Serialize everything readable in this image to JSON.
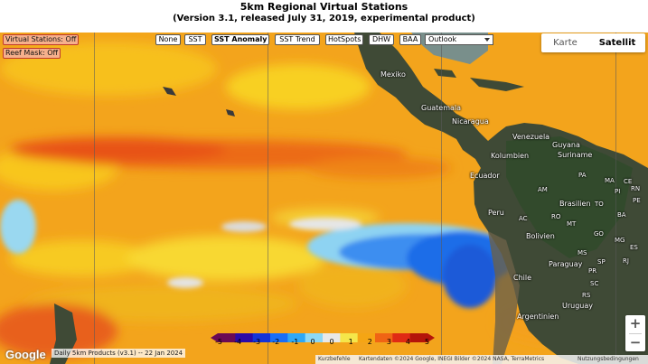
{
  "title": {
    "line1": "5km Regional Virtual Stations",
    "line2": "(Version 3.1, released July 31, 2019, experimental product)"
  },
  "toolbar": {
    "buttons": [
      {
        "label": "None",
        "active": false
      },
      {
        "label": "SST",
        "active": false
      },
      {
        "label": "SST Anomaly",
        "active": true
      },
      {
        "label": "SST Trend",
        "active": false
      },
      {
        "label": "HotSpots",
        "active": false
      },
      {
        "label": "DHW",
        "active": false
      },
      {
        "label": "BAA",
        "active": false
      }
    ],
    "outlook_select": {
      "value": "Outlook",
      "icon": "chevron-down-icon"
    }
  },
  "left_controls": {
    "virtual_stations": "Virtual Stations: Off",
    "reef_mask": "Reef Mask: Off"
  },
  "map_type": {
    "options": [
      {
        "label": "Karte",
        "selected": false
      },
      {
        "label": "Satellit",
        "selected": true
      }
    ]
  },
  "zoom": {
    "plus": "+",
    "minus": "−"
  },
  "place_labels": [
    {
      "text": "Mexiko",
      "small": false
    },
    {
      "text": "Guatemala",
      "small": false
    },
    {
      "text": "Nicaragua",
      "small": false
    },
    {
      "text": "Venezuela",
      "small": false
    },
    {
      "text": "Guyana",
      "small": false
    },
    {
      "text": "Suriname",
      "small": false
    },
    {
      "text": "Kolumbien",
      "small": false
    },
    {
      "text": "Ecuador",
      "small": false
    },
    {
      "text": "Peru",
      "small": false
    },
    {
      "text": "Brasilien",
      "small": false
    },
    {
      "text": "Bolivien",
      "small": false
    },
    {
      "text": "Paraguay",
      "small": false
    },
    {
      "text": "Chile",
      "small": false
    },
    {
      "text": "Uruguay",
      "small": false
    },
    {
      "text": "Argentinien",
      "small": false
    },
    {
      "text": "AM",
      "small": true
    },
    {
      "text": "PA",
      "small": true
    },
    {
      "text": "MA",
      "small": true
    },
    {
      "text": "CE",
      "small": true
    },
    {
      "text": "PI",
      "small": true
    },
    {
      "text": "PE",
      "small": true
    },
    {
      "text": "TO",
      "small": true
    },
    {
      "text": "BA",
      "small": true
    },
    {
      "text": "MT",
      "small": true
    },
    {
      "text": "GO",
      "small": true
    },
    {
      "text": "MG",
      "small": true
    },
    {
      "text": "MS",
      "small": true
    },
    {
      "text": "SP",
      "small": true
    },
    {
      "text": "PR",
      "small": true
    },
    {
      "text": "SC",
      "small": true
    },
    {
      "text": "RS",
      "small": true
    },
    {
      "text": "RO",
      "small": true
    },
    {
      "text": "AC",
      "small": true
    },
    {
      "text": "ES",
      "small": true
    },
    {
      "text": "RJ",
      "small": true
    },
    {
      "text": "RN",
      "small": true
    }
  ],
  "legend": {
    "tick_labels": [
      "-5",
      "-4",
      "-3",
      "-2",
      "-1",
      "0",
      "0",
      "1",
      "2",
      "3",
      "4",
      "5"
    ],
    "colors": [
      "#6a0a55",
      "#2a0aa8",
      "#1434d8",
      "#1a6ef5",
      "#2ea8f5",
      "#8cd8f5",
      "#e8e8e8",
      "#f5e64a",
      "#f5a514",
      "#f06414",
      "#e02a14",
      "#b4140a"
    ]
  },
  "bottom": {
    "google_logo": "Google",
    "product": "Daily 5km Products (v3.1) -- 22 Jan 2024",
    "attribution": {
      "shortcuts": "Kurzbefehle",
      "mapdata": "Kartendaten ©2024 Google, INEGI Bilder ©2024 NASA, TerraMetrics",
      "terms": "Nutzungsbedingungen"
    }
  },
  "colors": {
    "anomaly_warm": "#f2a51c",
    "anomaly_hot": "#e8521a",
    "anomaly_cool": "#1f6de8",
    "land": "#3f4a36"
  }
}
